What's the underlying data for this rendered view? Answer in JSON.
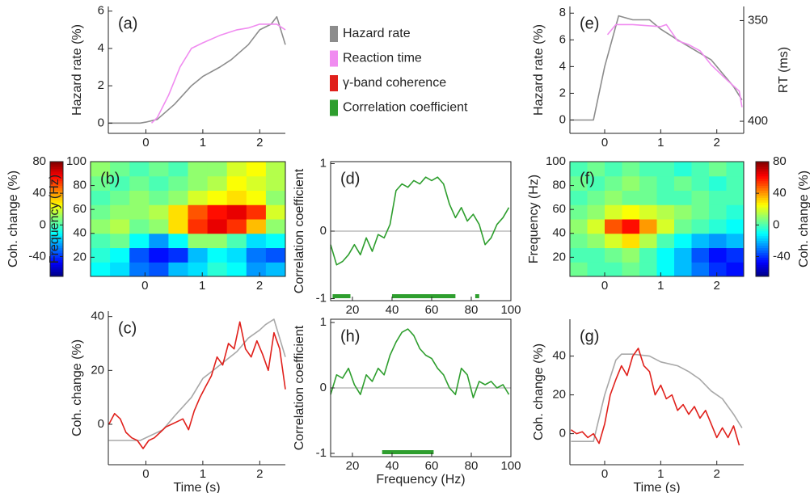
{
  "legend": [
    {
      "name": "Hazard rate",
      "color": "#8c8c8c"
    },
    {
      "name": "Reaction time",
      "color": "#f08cf0"
    },
    {
      "name": "γ-band coherence",
      "color": "#e0201b"
    },
    {
      "name": "Correlation coefficient",
      "color": "#2e9e2e"
    }
  ],
  "chart_data": [
    {
      "type": "line",
      "label": "(a)",
      "ylabel": "Hazard rate (%)",
      "xlim": [
        -0.66,
        2.45
      ],
      "xticks": [
        0,
        1,
        2
      ],
      "ylim": [
        -0.55,
        6.25
      ],
      "yticks": [
        0,
        2,
        4,
        6
      ],
      "box": false,
      "series": [
        {
          "color": "#8c8c8c",
          "x": [
            -0.65,
            -0.1,
            0,
            0.2,
            0.5,
            0.8,
            1.0,
            1.3,
            1.5,
            1.8,
            2.0,
            2.2,
            2.3,
            2.45
          ],
          "values": [
            0,
            0,
            0.05,
            0.2,
            1.0,
            2.0,
            2.5,
            3.0,
            3.4,
            4.2,
            5.0,
            5.3,
            5.7,
            4.2
          ]
        },
        {
          "color": "#f08cf0",
          "x": [
            0.1,
            0.2,
            0.4,
            0.6,
            0.8,
            1.0,
            1.3,
            1.6,
            1.8,
            2.0,
            2.3,
            2.45
          ],
          "values": [
            0,
            0.3,
            1.5,
            3.0,
            4.0,
            4.3,
            4.7,
            5.0,
            5.1,
            5.3,
            5.3,
            5.0
          ]
        }
      ]
    },
    {
      "type": "heatmap",
      "label": "(b)",
      "ylabel": "Frequency (Hz)",
      "xlim": [
        -0.95,
        2.45
      ],
      "xticks": [
        0,
        1,
        2
      ],
      "ylim": [
        4,
        100
      ],
      "yticks": [
        20,
        40,
        60,
        80,
        100
      ],
      "box": true,
      "colormap": "jet",
      "clim": [
        -65,
        80
      ],
      "cticks": [
        -40,
        0,
        40,
        80
      ],
      "clabel": "Coh. change (%)",
      "colorbar": "left",
      "x": [
        -0.78,
        -0.44,
        -0.1,
        0.24,
        0.58,
        0.92,
        1.26,
        1.6,
        1.94,
        2.28
      ],
      "y": [
        10,
        22,
        34,
        46,
        58,
        70,
        82,
        94
      ],
      "z": [
        [
          -10,
          -15,
          -30,
          -35,
          -20,
          -15,
          -5,
          -10,
          -25,
          -20
        ],
        [
          -5,
          -10,
          -35,
          -45,
          -40,
          -20,
          -10,
          -15,
          -30,
          -35
        ],
        [
          0,
          5,
          -10,
          -25,
          -10,
          10,
          10,
          0,
          -15,
          -10
        ],
        [
          10,
          15,
          5,
          10,
          30,
          55,
          65,
          55,
          35,
          10
        ],
        [
          5,
          10,
          10,
          15,
          30,
          50,
          60,
          65,
          55,
          20
        ],
        [
          0,
          5,
          10,
          5,
          10,
          20,
          25,
          30,
          25,
          10
        ],
        [
          5,
          0,
          5,
          0,
          5,
          10,
          15,
          25,
          20,
          15
        ],
        [
          10,
          5,
          0,
          5,
          0,
          10,
          10,
          20,
          25,
          15
        ]
      ]
    },
    {
      "type": "line",
      "label": "(c)",
      "ylabel": "Coh. change (%)",
      "xlabel": "Time (s)",
      "xlim": [
        -0.66,
        2.45
      ],
      "xticks": [
        0,
        1,
        2
      ],
      "ylim": [
        -15,
        42
      ],
      "yticks": [
        0,
        20,
        40
      ],
      "box": false,
      "series": [
        {
          "color": "#a8a8a8",
          "x": [
            -0.65,
            -0.1,
            0.3,
            0.5,
            0.8,
            1.0,
            1.3,
            1.6,
            1.8,
            2.0,
            2.1,
            2.25,
            2.45
          ],
          "values": [
            -6,
            -6,
            -2,
            3,
            10,
            17,
            22,
            27,
            32,
            35,
            37,
            39,
            25
          ]
        },
        {
          "color": "#e0201b",
          "x": [
            -0.65,
            -0.55,
            -0.45,
            -0.35,
            -0.25,
            -0.15,
            -0.05,
            0.05,
            0.15,
            0.25,
            0.35,
            0.45,
            0.55,
            0.65,
            0.75,
            0.85,
            0.95,
            1.05,
            1.15,
            1.25,
            1.35,
            1.45,
            1.55,
            1.65,
            1.75,
            1.85,
            1.95,
            2.05,
            2.15,
            2.25,
            2.35,
            2.45
          ],
          "values": [
            0,
            4,
            2,
            -3,
            -5,
            -6,
            -9,
            -6,
            -5,
            -3,
            -1,
            0,
            1,
            2,
            -2,
            5,
            10,
            14,
            18,
            25,
            22,
            30,
            28,
            38,
            28,
            25,
            31,
            26,
            20,
            34,
            28,
            13
          ]
        }
      ]
    },
    {
      "type": "line",
      "label": "(d)",
      "ylabel": "Correlation coefficient",
      "xlim": [
        9,
        100
      ],
      "xticks": [
        20,
        40,
        60,
        80,
        100
      ],
      "ylim": [
        -1.03,
        1.03
      ],
      "yticks": [
        -1,
        0,
        1
      ],
      "box": true,
      "zero_line": true,
      "significant": [
        [
          10,
          19
        ],
        [
          40,
          72
        ],
        [
          82,
          84
        ]
      ],
      "series": [
        {
          "color": "#2e9e2e",
          "x": [
            9,
            12,
            15,
            18,
            21,
            24,
            27,
            30,
            33,
            36,
            39,
            42,
            45,
            48,
            51,
            54,
            57,
            60,
            63,
            66,
            69,
            72,
            75,
            78,
            81,
            84,
            87,
            90,
            93,
            96,
            99
          ],
          "values": [
            -0.2,
            -0.5,
            -0.45,
            -0.35,
            -0.2,
            -0.35,
            -0.1,
            -0.3,
            -0.05,
            -0.1,
            0.1,
            0.6,
            0.7,
            0.65,
            0.75,
            0.7,
            0.8,
            0.75,
            0.8,
            0.7,
            0.4,
            0.2,
            0.35,
            0.15,
            0.25,
            0.1,
            -0.2,
            -0.1,
            0.1,
            0.2,
            0.35
          ]
        }
      ]
    },
    {
      "type": "line",
      "label": "(h)",
      "ylabel": "Correlation coefficient",
      "xlabel": "Frequency (Hz)",
      "xlim": [
        9,
        100
      ],
      "xticks": [
        20,
        40,
        60,
        80,
        100
      ],
      "ylim": [
        -1.05,
        1.05
      ],
      "yticks": [
        -1,
        0,
        1
      ],
      "box": true,
      "zero_line": true,
      "significant": [
        [
          35,
          61
        ]
      ],
      "series": [
        {
          "color": "#2e9e2e",
          "x": [
            9,
            12,
            15,
            18,
            21,
            24,
            27,
            30,
            33,
            36,
            39,
            42,
            45,
            48,
            51,
            54,
            57,
            60,
            63,
            66,
            69,
            72,
            75,
            78,
            81,
            84,
            87,
            90,
            93,
            96,
            99
          ],
          "values": [
            -0.1,
            0.2,
            0.15,
            0.3,
            0.05,
            -0.1,
            0.2,
            0.1,
            0.3,
            0.2,
            0.5,
            0.7,
            0.85,
            0.9,
            0.8,
            0.6,
            0.5,
            0.45,
            0.3,
            0.2,
            0,
            -0.1,
            0.3,
            0.2,
            -0.15,
            0.1,
            0.05,
            0.1,
            0,
            0.05,
            -0.1
          ]
        }
      ]
    },
    {
      "type": "line",
      "label": "(e)",
      "ylabel": "Hazard rate (%)",
      "y2label": "RT (ms)",
      "xlim": [
        -0.62,
        2.48
      ],
      "xticks": [
        0,
        1,
        2
      ],
      "ylim": [
        -1,
        8.5
      ],
      "yticks": [
        0,
        2,
        4,
        6,
        8
      ],
      "y2lim": [
        406,
        343
      ],
      "y2ticks": [
        350,
        400
      ],
      "box": false,
      "series": [
        {
          "color": "#8c8c8c",
          "x": [
            -0.6,
            -0.2,
            0,
            0.25,
            0.5,
            0.8,
            1.0,
            1.3,
            1.5,
            1.7,
            1.9,
            2.1,
            2.3,
            2.45
          ],
          "values": [
            0,
            0,
            4,
            7.8,
            7.5,
            7.5,
            6.8,
            6,
            5.5,
            5,
            4.5,
            3.5,
            2.5,
            1.5
          ]
        },
        {
          "color": "#f08cf0",
          "axis": "y2",
          "x": [
            0.05,
            0.2,
            0.5,
            1.0,
            1.1,
            1.3,
            1.5,
            1.7,
            1.9,
            2.2,
            2.4,
            2.45
          ],
          "values": [
            357,
            352,
            352,
            353,
            352,
            360,
            362,
            365,
            372,
            380,
            385,
            393
          ]
        }
      ]
    },
    {
      "type": "heatmap",
      "label": "(f)",
      "ylabel": "Frequency (Hz)",
      "xlim": [
        -0.62,
        2.48
      ],
      "xticks": [
        0,
        1,
        2
      ],
      "ylim": [
        4,
        100
      ],
      "yticks": [
        20,
        40,
        60,
        80,
        100
      ],
      "box": true,
      "colormap": "jet",
      "clim": [
        -65,
        80
      ],
      "cticks": [
        -40,
        0,
        40,
        80
      ],
      "clabel": "Coh. change (%)",
      "colorbar": "right",
      "x": [
        -0.465,
        -0.155,
        0.155,
        0.465,
        0.775,
        1.085,
        1.395,
        1.705,
        2.015,
        2.325
      ],
      "y": [
        10,
        22,
        34,
        46,
        58,
        70,
        82,
        94
      ],
      "z": [
        [
          5,
          0,
          0,
          5,
          0,
          -10,
          -20,
          -30,
          -40,
          -45
        ],
        [
          0,
          0,
          5,
          10,
          0,
          -10,
          -20,
          -35,
          -45,
          -40
        ],
        [
          5,
          10,
          20,
          30,
          15,
          0,
          -10,
          -20,
          -25,
          -20
        ],
        [
          10,
          20,
          50,
          60,
          40,
          20,
          5,
          0,
          -5,
          -10
        ],
        [
          5,
          10,
          20,
          25,
          20,
          15,
          10,
          5,
          0,
          -5
        ],
        [
          0,
          5,
          10,
          5,
          5,
          0,
          0,
          5,
          0,
          0
        ],
        [
          5,
          0,
          5,
          10,
          5,
          0,
          5,
          0,
          -5,
          0
        ],
        [
          0,
          5,
          0,
          5,
          0,
          0,
          -5,
          0,
          5,
          0
        ]
      ]
    },
    {
      "type": "line",
      "label": "(g)",
      "ylabel": "Coh. change (%)",
      "xlabel": "Time (s)",
      "xlim": [
        -0.62,
        2.48
      ],
      "xticks": [
        0,
        1,
        2
      ],
      "ylim": [
        -16,
        59
      ],
      "yticks": [
        0,
        20,
        40
      ],
      "box": false,
      "series": [
        {
          "color": "#a8a8a8",
          "x": [
            -0.6,
            -0.2,
            0,
            0.2,
            0.3,
            0.5,
            0.8,
            1.0,
            1.3,
            1.5,
            1.7,
            1.9,
            2.1,
            2.3,
            2.45
          ],
          "values": [
            -4,
            -4,
            20,
            38,
            41,
            41,
            40,
            37,
            35,
            32,
            28,
            22,
            18,
            10,
            3
          ]
        },
        {
          "color": "#e0201b",
          "x": [
            -0.6,
            -0.5,
            -0.4,
            -0.3,
            -0.2,
            -0.1,
            0,
            0.1,
            0.2,
            0.3,
            0.4,
            0.5,
            0.6,
            0.7,
            0.8,
            0.9,
            1.0,
            1.1,
            1.2,
            1.3,
            1.4,
            1.5,
            1.6,
            1.7,
            1.8,
            1.9,
            2.0,
            2.1,
            2.2,
            2.3,
            2.4
          ],
          "values": [
            2,
            0,
            1,
            -2,
            0,
            -5,
            5,
            20,
            28,
            35,
            30,
            40,
            44,
            35,
            32,
            20,
            25,
            18,
            20,
            12,
            15,
            10,
            14,
            8,
            12,
            5,
            -2,
            3,
            -2,
            4,
            -6
          ]
        }
      ]
    }
  ]
}
